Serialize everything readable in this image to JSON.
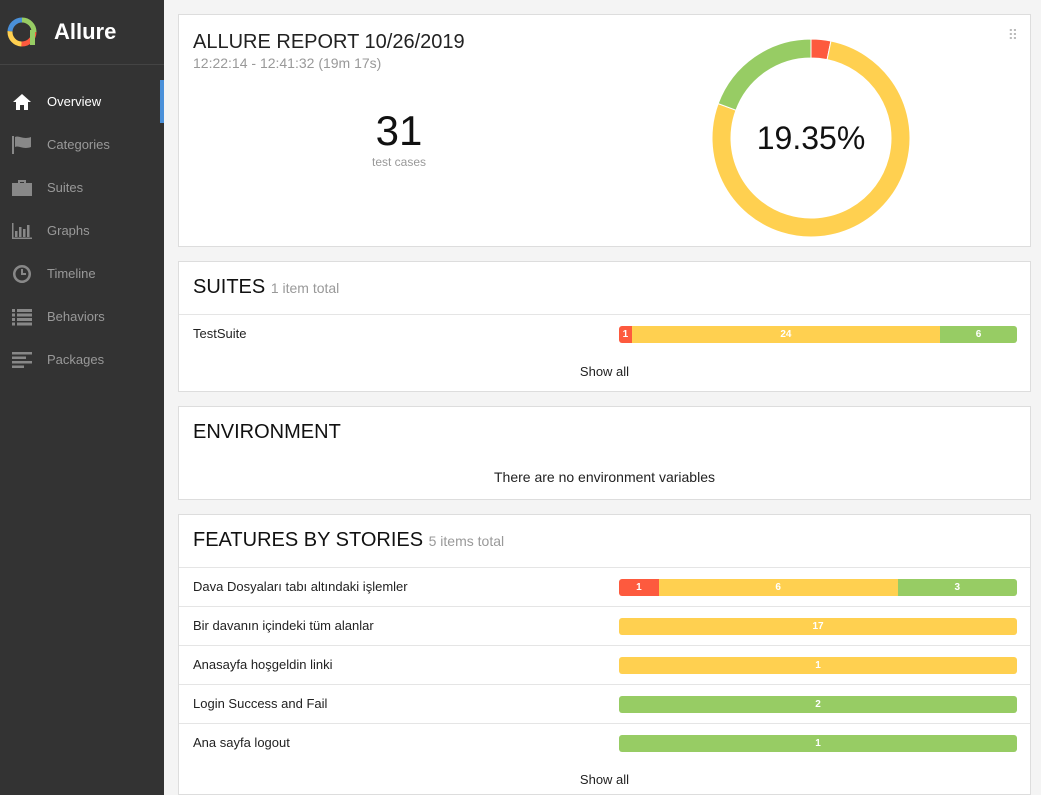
{
  "app": {
    "name": "Allure"
  },
  "nav": [
    {
      "label": "Overview",
      "icon": "home-icon",
      "active": true
    },
    {
      "label": "Categories",
      "icon": "flag-icon"
    },
    {
      "label": "Suites",
      "icon": "briefcase-icon"
    },
    {
      "label": "Graphs",
      "icon": "bar-chart-icon"
    },
    {
      "label": "Timeline",
      "icon": "clock-icon"
    },
    {
      "label": "Behaviors",
      "icon": "list-icon"
    },
    {
      "label": "Packages",
      "icon": "align-left-icon"
    }
  ],
  "summary": {
    "title": "ALLURE REPORT 10/26/2019",
    "time": "12:22:14 - 12:41:32 (19m 17s)",
    "count": "31",
    "count_label": "test cases",
    "percent": "19.35%",
    "counts": {
      "failed": 1,
      "broken": 24,
      "passed": 6
    }
  },
  "suites": {
    "title": "SUITES",
    "total": "1 item total",
    "rows": [
      {
        "name": "TestSuite",
        "failed": 1,
        "broken": 24,
        "passed": 6
      }
    ],
    "show_all": "Show all"
  },
  "environment": {
    "title": "ENVIRONMENT",
    "empty": "There are no environment variables"
  },
  "features": {
    "title": "FEATURES BY STORIES",
    "total": "5 items total",
    "rows": [
      {
        "name": "Dava Dosyaları tabı altındaki işlemler",
        "failed": 1,
        "broken": 6,
        "passed": 3
      },
      {
        "name": "Bir davanın içindeki tüm alanlar",
        "failed": 0,
        "broken": 17,
        "passed": 0
      },
      {
        "name": "Anasayfa hoşgeldin linki",
        "failed": 0,
        "broken": 1,
        "passed": 0
      },
      {
        "name": "Login Success and Fail",
        "failed": 0,
        "broken": 0,
        "passed": 2
      },
      {
        "name": "Ana sayfa logout",
        "failed": 0,
        "broken": 0,
        "passed": 1
      }
    ],
    "show_all": "Show all"
  },
  "colors": {
    "failed": "#fd5a3e",
    "broken": "#ffd050",
    "passed": "#97cc64",
    "sidebar": "#333333",
    "accent": "#4a90d9"
  }
}
